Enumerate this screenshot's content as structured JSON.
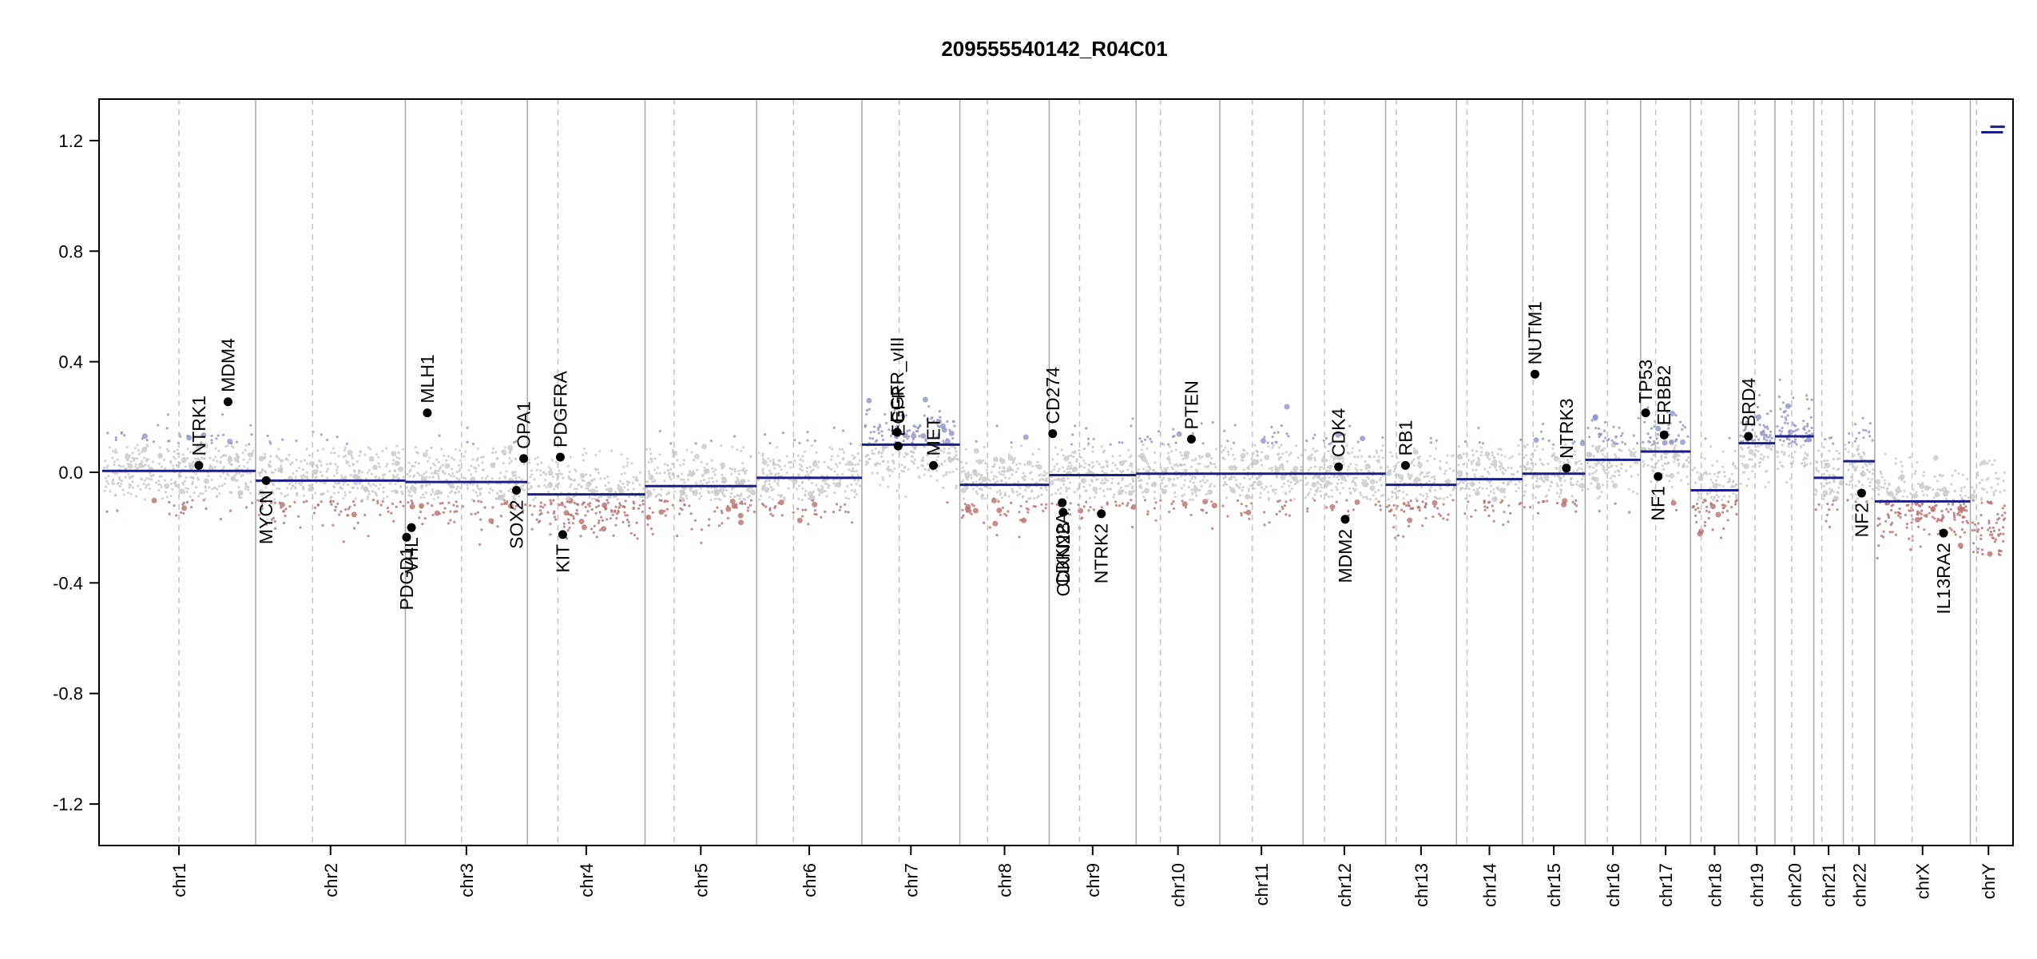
{
  "chart_data": {
    "type": "scatter",
    "title": "209555540142_R04C01",
    "xlabel": "",
    "ylabel": "",
    "ylim": [
      -1.35,
      1.35
    ],
    "yticks": [
      -1.2,
      -0.8,
      -0.4,
      0.0,
      0.4,
      0.8,
      1.2
    ],
    "ytick_labels": [
      "-1.2",
      "-0.8",
      "-0.4",
      "0.0",
      "0.4",
      "0.8",
      "1.2"
    ],
    "grid": false,
    "legend": "none",
    "colors": {
      "gain": "#8f93c6",
      "loss": "#b8706e",
      "neutral": "#c9c9c9",
      "segment": "#1d1d8a",
      "boundary": "#a9a9a9",
      "centromere": "#c3c3c3",
      "gene_point": "#000000"
    },
    "chromosomes": [
      {
        "name": "chr1",
        "size": 249,
        "centromere": 0.5,
        "segments": [
          {
            "from": 0,
            "to": 1,
            "value": 0.005
          }
        ],
        "gain_region": 0.25,
        "loss_region": 0.05
      },
      {
        "name": "chr2",
        "size": 243,
        "centromere": 0.38,
        "segments": [
          {
            "from": 0,
            "to": 1,
            "value": -0.03
          }
        ],
        "gain_region": 0.1,
        "loss_region": 0.4
      },
      {
        "name": "chr3",
        "size": 198,
        "centromere": 0.46,
        "segments": [
          {
            "from": 0,
            "to": 1,
            "value": -0.035
          }
        ],
        "gain_region": 0.2,
        "loss_region": 0.4
      },
      {
        "name": "chr4",
        "size": 191,
        "centromere": 0.26,
        "segments": [
          {
            "from": 0,
            "to": 1,
            "value": -0.08
          }
        ],
        "gain_region": 0.2,
        "loss_region": 0.6
      },
      {
        "name": "chr5",
        "size": 181,
        "centromere": 0.26,
        "segments": [
          {
            "from": 0,
            "to": 1,
            "value": -0.05
          }
        ],
        "gain_region": 0.15,
        "loss_region": 0.4
      },
      {
        "name": "chr6",
        "size": 171,
        "centromere": 0.35,
        "segments": [
          {
            "from": 0,
            "to": 1,
            "value": -0.02
          }
        ],
        "gain_region": 0.25,
        "loss_region": 0.35
      },
      {
        "name": "chr7",
        "size": 159,
        "centromere": 0.38,
        "segments": [
          {
            "from": 0,
            "to": 1,
            "value": 0.1
          }
        ],
        "gain_region": 0.7,
        "loss_region": 0.05
      },
      {
        "name": "chr8",
        "size": 145,
        "centromere": 0.31,
        "segments": [
          {
            "from": 0,
            "to": 1,
            "value": -0.045
          }
        ],
        "gain_region": 0.1,
        "loss_region": 0.45
      },
      {
        "name": "chr9",
        "size": 141,
        "centromere": 0.35,
        "segments": [
          {
            "from": 0,
            "to": 1,
            "value": -0.01
          }
        ],
        "gain_region": 0.3,
        "loss_region": 0.3
      },
      {
        "name": "chr10",
        "size": 136,
        "centromere": 0.29,
        "segments": [
          {
            "from": 0,
            "to": 1,
            "value": -0.005
          }
        ],
        "gain_region": 0.35,
        "loss_region": 0.25
      },
      {
        "name": "chr11",
        "size": 135,
        "centromere": 0.39,
        "segments": [
          {
            "from": 0,
            "to": 1,
            "value": -0.005
          }
        ],
        "gain_region": 0.3,
        "loss_region": 0.3
      },
      {
        "name": "chr12",
        "size": 134,
        "centromere": 0.26,
        "segments": [
          {
            "from": 0,
            "to": 1,
            "value": -0.005
          }
        ],
        "gain_region": 0.35,
        "loss_region": 0.3
      },
      {
        "name": "chr13",
        "size": 115,
        "centromere": 0.15,
        "segments": [
          {
            "from": 0,
            "to": 1,
            "value": -0.045
          }
        ],
        "gain_region": 0.15,
        "loss_region": 0.5
      },
      {
        "name": "chr14",
        "size": 107,
        "centromere": 0.16,
        "segments": [
          {
            "from": 0,
            "to": 1,
            "value": -0.025
          }
        ],
        "gain_region": 0.2,
        "loss_region": 0.4
      },
      {
        "name": "chr15",
        "size": 102,
        "centromere": 0.17,
        "segments": [
          {
            "from": 0,
            "to": 1,
            "value": -0.005
          }
        ],
        "gain_region": 0.35,
        "loss_region": 0.35
      },
      {
        "name": "chr16",
        "size": 90,
        "centromere": 0.4,
        "segments": [
          {
            "from": 0,
            "to": 1,
            "value": 0.045
          }
        ],
        "gain_region": 0.45,
        "loss_region": 0.25
      },
      {
        "name": "chr17",
        "size": 81,
        "centromere": 0.3,
        "segments": [
          {
            "from": 0,
            "to": 1,
            "value": 0.075
          }
        ],
        "gain_region": 0.55,
        "loss_region": 0.2
      },
      {
        "name": "chr18",
        "size": 78,
        "centromere": 0.22,
        "segments": [
          {
            "from": 0,
            "to": 1,
            "value": -0.065
          }
        ],
        "gain_region": 0.1,
        "loss_region": 0.5
      },
      {
        "name": "chr19",
        "size": 59,
        "centromere": 0.45,
        "segments": [
          {
            "from": 0,
            "to": 1,
            "value": 0.105
          }
        ],
        "gain_region": 0.7,
        "loss_region": 0.05
      },
      {
        "name": "chr20",
        "size": 63,
        "centromere": 0.43,
        "segments": [
          {
            "from": 0,
            "to": 1,
            "value": 0.13
          }
        ],
        "gain_region": 0.8,
        "loss_region": 0.02
      },
      {
        "name": "chr21",
        "size": 48,
        "centromere": 0.27,
        "segments": [
          {
            "from": 0,
            "to": 1,
            "value": -0.02
          }
        ],
        "gain_region": 0.25,
        "loss_region": 0.35
      },
      {
        "name": "chr22",
        "size": 51,
        "centromere": 0.29,
        "segments": [
          {
            "from": 0,
            "to": 1,
            "value": 0.04
          }
        ],
        "gain_region": 0.5,
        "loss_region": 0.2
      },
      {
        "name": "chrX",
        "size": 155,
        "centromere": 0.39,
        "segments": [
          {
            "from": 0,
            "to": 1,
            "value": -0.105
          }
        ],
        "gain_region": 0.1,
        "loss_region": 0.6
      },
      {
        "name": "chrY",
        "size": 59,
        "centromere": 0.17,
        "segments": [
          {
            "from": 0.3,
            "to": 0.9,
            "value": 1.23
          },
          {
            "from": 0.55,
            "to": 0.95,
            "value": 1.25
          }
        ],
        "gain_region": 0.0,
        "loss_region": 0.2
      }
    ],
    "genes": [
      {
        "name": "NTRK1",
        "chr": "chr1",
        "pos": 0.63,
        "value": 0.025,
        "label_side": "above"
      },
      {
        "name": "MDM4",
        "chr": "chr1",
        "pos": 0.82,
        "value": 0.255,
        "label_side": "above"
      },
      {
        "name": "MYCN",
        "chr": "chr2",
        "pos": 0.07,
        "value": -0.03,
        "label_side": "below"
      },
      {
        "name": "PDGD1",
        "chr": "chr3",
        "pos": 0.01,
        "value": -0.235,
        "label_side": "below"
      },
      {
        "name": "VHL",
        "chr": "chr3",
        "pos": 0.05,
        "value": -0.2,
        "label_side": "below"
      },
      {
        "name": "MLH1",
        "chr": "chr3",
        "pos": 0.18,
        "value": 0.215,
        "label_side": "above"
      },
      {
        "name": "SOX2",
        "chr": "chr3",
        "pos": 0.91,
        "value": -0.065,
        "label_side": "below"
      },
      {
        "name": "OPA1",
        "chr": "chr3",
        "pos": 0.97,
        "value": 0.05,
        "label_side": "above"
      },
      {
        "name": "PDGFRA",
        "chr": "chr4",
        "pos": 0.28,
        "value": 0.055,
        "label_side": "above"
      },
      {
        "name": "KIT",
        "chr": "chr4",
        "pos": 0.3,
        "value": -0.225,
        "label_side": "below"
      },
      {
        "name": "EGFR_vIII",
        "chr": "chr7",
        "pos": 0.36,
        "value": 0.145,
        "label_side": "above"
      },
      {
        "name": "EGFR",
        "chr": "chr7",
        "pos": 0.37,
        "value": 0.095,
        "label_side": "above"
      },
      {
        "name": "MET",
        "chr": "chr7",
        "pos": 0.73,
        "value": 0.025,
        "label_side": "above"
      },
      {
        "name": "CD274",
        "chr": "chr9",
        "pos": 0.04,
        "value": 0.14,
        "label_side": "above"
      },
      {
        "name": "CDKN2A",
        "chr": "chr9",
        "pos": 0.15,
        "value": -0.11,
        "label_side": "below"
      },
      {
        "name": "CDKN2B",
        "chr": "chr9",
        "pos": 0.16,
        "value": -0.145,
        "label_side": "below"
      },
      {
        "name": "NTRK2",
        "chr": "chr9",
        "pos": 0.6,
        "value": -0.15,
        "label_side": "below"
      },
      {
        "name": "PTEN",
        "chr": "chr10",
        "pos": 0.66,
        "value": 0.12,
        "label_side": "above"
      },
      {
        "name": "CDK4",
        "chr": "chr12",
        "pos": 0.43,
        "value": 0.02,
        "label_side": "above"
      },
      {
        "name": "MDM2",
        "chr": "chr12",
        "pos": 0.51,
        "value": -0.17,
        "label_side": "below"
      },
      {
        "name": "RB1",
        "chr": "chr13",
        "pos": 0.28,
        "value": 0.025,
        "label_side": "above"
      },
      {
        "name": "NUTM1",
        "chr": "chr15",
        "pos": 0.2,
        "value": 0.355,
        "label_side": "above"
      },
      {
        "name": "NTRK3",
        "chr": "chr15",
        "pos": 0.7,
        "value": 0.015,
        "label_side": "above"
      },
      {
        "name": "TP53",
        "chr": "chr17",
        "pos": 0.1,
        "value": 0.215,
        "label_side": "above"
      },
      {
        "name": "NF1",
        "chr": "chr17",
        "pos": 0.35,
        "value": -0.015,
        "label_side": "below"
      },
      {
        "name": "ERBB2",
        "chr": "chr17",
        "pos": 0.47,
        "value": 0.135,
        "label_side": "above"
      },
      {
        "name": "BRD4",
        "chr": "chr19",
        "pos": 0.27,
        "value": 0.13,
        "label_side": "above"
      },
      {
        "name": "NF2",
        "chr": "chr22",
        "pos": 0.58,
        "value": -0.075,
        "label_side": "below"
      },
      {
        "name": "IL13RA2",
        "chr": "chrX",
        "pos": 0.72,
        "value": -0.22,
        "label_side": "below"
      }
    ]
  }
}
